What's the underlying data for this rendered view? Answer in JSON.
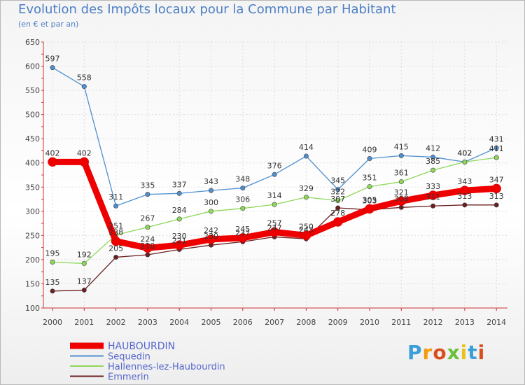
{
  "title": "Evolution des Impôts locaux pour la Commune par Habitant",
  "subtitle": "(en € et par an)",
  "logo_text": "Proxiti",
  "chart_data": {
    "type": "line",
    "x": [
      "2000",
      "2001",
      "2002",
      "2003",
      "2004",
      "2005",
      "2006",
      "2007",
      "2008",
      "2009",
      "2010",
      "2011",
      "2012",
      "2013",
      "2014"
    ],
    "ylim": [
      100,
      650
    ],
    "yticks": [
      100,
      150,
      200,
      250,
      300,
      350,
      400,
      450,
      500,
      550,
      600,
      650
    ],
    "grid": true,
    "legend_position": "bottom-left",
    "series": [
      {
        "name": "HAUBOURDIN",
        "color": "#ee0000",
        "values": [
          402,
          402,
          238,
          224,
          230,
          242,
          245,
          257,
          250,
          278,
          305,
          321,
          333,
          343,
          347
        ],
        "labels": [
          "402",
          "402",
          "238",
          "224",
          "230",
          "242",
          "245",
          "257",
          "250",
          "278",
          "305",
          "321",
          "333",
          "343",
          "347"
        ]
      },
      {
        "name": "Sequedin",
        "color": "#4f8fd0",
        "values": [
          597,
          558,
          311,
          335,
          337,
          343,
          348,
          376,
          414,
          345,
          409,
          415,
          412,
          402,
          431
        ],
        "labels": [
          "597",
          "558",
          "311",
          "335",
          "337",
          "343",
          "348",
          "376",
          "414",
          "345",
          "409",
          "415",
          "412",
          "402",
          "431"
        ]
      },
      {
        "name": "Hallennes-lez-Haubourdin",
        "color": "#8ed85a",
        "values": [
          195,
          192,
          251,
          267,
          284,
          300,
          306,
          314,
          329,
          322,
          351,
          361,
          385,
          402,
          411
        ],
        "labels": [
          "195",
          "192",
          "251",
          "267",
          "284",
          "300",
          "306",
          "314",
          "329",
          "322",
          "351",
          "361",
          "385",
          "402",
          "411"
        ]
      },
      {
        "name": "Emmerin",
        "color": "#6b2020",
        "values": [
          135,
          137,
          205,
          210,
          221,
          230,
          237,
          247,
          243,
          307,
          303,
          308,
          311,
          313,
          313
        ],
        "labels": [
          "135",
          "137",
          "205",
          "210",
          "221",
          "230",
          "237",
          "247",
          "243",
          "307",
          "303",
          "308",
          "311",
          "313",
          "313"
        ]
      }
    ]
  },
  "colors": {
    "title": "#4d7fc4",
    "axis_labels": "#444444",
    "grid": "#dddddd",
    "legend_text": "#5566cc"
  }
}
